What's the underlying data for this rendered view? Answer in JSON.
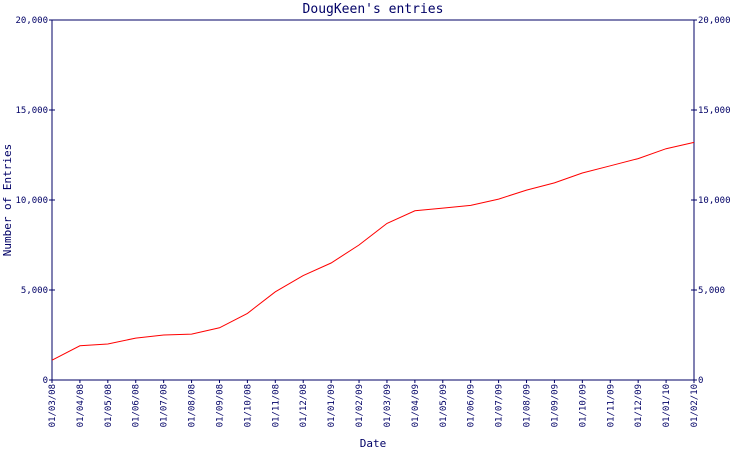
{
  "chart_data": {
    "type": "line",
    "title": "DougKeen's entries",
    "x_label": "Date",
    "y_label": "Number of Entries",
    "categories": [
      "01/03/08",
      "01/04/08",
      "01/05/08",
      "01/06/08",
      "01/07/08",
      "01/08/08",
      "01/09/08",
      "01/10/08",
      "01/11/08",
      "01/12/08",
      "01/01/09",
      "01/02/09",
      "01/03/09",
      "01/04/09",
      "01/05/09",
      "01/06/09",
      "01/07/09",
      "01/08/09",
      "01/09/09",
      "01/10/09",
      "01/11/09",
      "01/12/09",
      "01/01/10",
      "01/02/10"
    ],
    "values": [
      1100,
      1900,
      2000,
      2330,
      2500,
      2550,
      2900,
      3700,
      4900,
      5800,
      6500,
      7500,
      8700,
      9400,
      9550,
      9700,
      10050,
      10550,
      10950,
      11500,
      11900,
      12300,
      12850,
      13200
    ],
    "color": "#ff0000",
    "ylim": [
      0,
      20000
    ],
    "yticks": [
      0,
      {
        "value": 5000,
        "label": "5,000"
      },
      {
        "value": 10000,
        "label": "10,000"
      },
      {
        "value": 15000,
        "label": "15,000"
      },
      {
        "value": 20000,
        "label": "20,000"
      }
    ],
    "y2lim": [
      0,
      20000
    ],
    "y2ticks": [
      0,
      {
        "value": 5000,
        "label": "5,000"
      },
      {
        "value": 10000,
        "label": "10,000"
      },
      {
        "value": 15000,
        "label": "15,000"
      },
      {
        "value": 20000,
        "label": "20,000"
      }
    ]
  }
}
